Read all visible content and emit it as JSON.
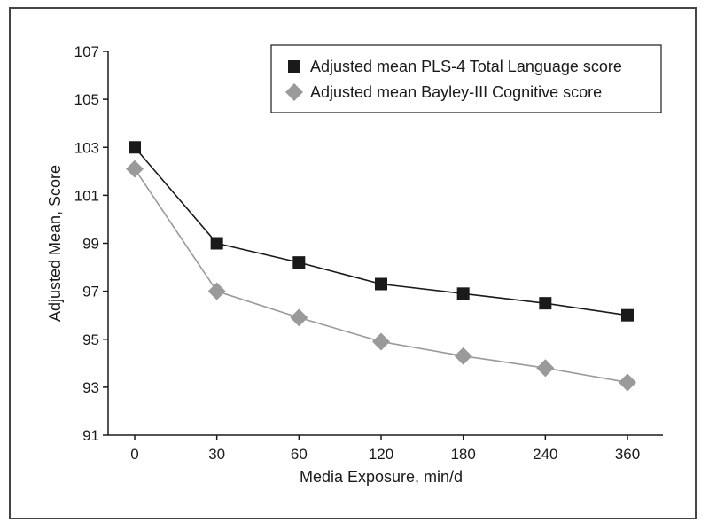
{
  "chart_data": {
    "type": "line",
    "title": "",
    "xlabel": "Media Exposure, min/d",
    "ylabel": "Adjusted Mean, Score",
    "categories": [
      "0",
      "30",
      "60",
      "120",
      "180",
      "240",
      "360"
    ],
    "ylim": [
      91,
      107
    ],
    "yticks": [
      91,
      93,
      95,
      97,
      99,
      101,
      103,
      105,
      107
    ],
    "grid": false,
    "legend_position": "top-right",
    "series": [
      {
        "name": "Adjusted mean PLS-4 Total Language score",
        "marker": "square",
        "color": "#1a1a1a",
        "values": [
          103.0,
          99.0,
          98.2,
          97.3,
          96.9,
          96.5,
          96.0
        ]
      },
      {
        "name": "Adjusted mean Bayley-III Cognitive score",
        "marker": "diamond",
        "color": "#9a9a9a",
        "values": [
          102.1,
          97.0,
          95.9,
          94.9,
          94.3,
          93.8,
          93.2
        ]
      }
    ]
  }
}
